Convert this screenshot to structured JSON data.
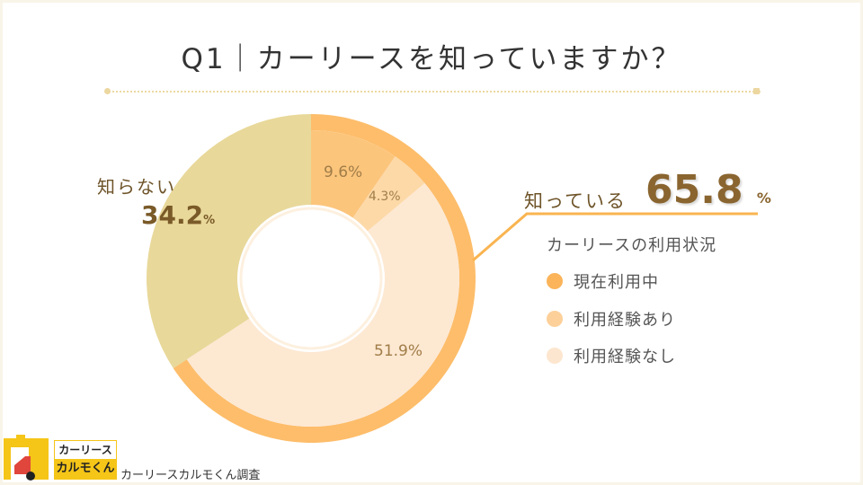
{
  "title": "Q1｜カーリースを知っていますか？",
  "colors": {
    "know_band": "#fdbd6a",
    "not_know": "#e8d89a",
    "current_use": "#fcc57c",
    "used_before": "#fdd9a8",
    "never_used": "#fde8d2",
    "accent_line": "#f9b450"
  },
  "chart_data": {
    "type": "pie",
    "donut": true,
    "title": "Q1｜カーリースを知っていますか？",
    "outer": [
      {
        "label": "知っている",
        "value": 65.8,
        "display": "65.8",
        "unit": "%"
      },
      {
        "label": "知らない",
        "value": 34.2,
        "display": "34.2",
        "unit": "%"
      }
    ],
    "inner_breakdown": [
      {
        "label": "現在利用中",
        "value": 9.6,
        "display": "9.6%"
      },
      {
        "label": "利用経験あり",
        "value": 4.3,
        "display": "4.3%"
      },
      {
        "label": "利用経験なし",
        "value": 51.9,
        "display": "51.9%"
      }
    ],
    "legend_title": "カーリースの利用状況",
    "legend": [
      "現在利用中",
      "利用経験あり",
      "利用経験なし"
    ]
  },
  "footer": {
    "logo_line1": "カーリース",
    "logo_line2": "カルモくん",
    "credit": "カーリースカルモくん調査"
  }
}
